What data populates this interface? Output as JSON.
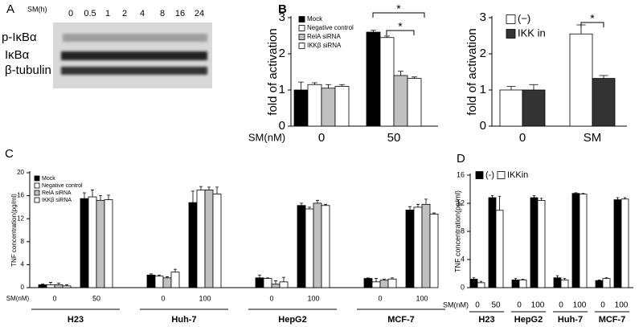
{
  "panel_labels": [
    "A",
    "B",
    "C",
    "D"
  ],
  "blot": {
    "time_label": "SM(h)",
    "timepoints": [
      "0",
      "0.5",
      "1",
      "2",
      "4",
      "8",
      "16",
      "24"
    ],
    "rows": [
      "p-IκBα",
      "IκBα",
      "β-tubulin"
    ]
  },
  "chart_data": [
    {
      "type": "bar",
      "ylabel": "fold of activation",
      "xlabel": "SM(nM)",
      "categories": [
        "0",
        "50"
      ],
      "series": [
        {
          "name": "Mock",
          "color": "#000000",
          "values": [
            1.0,
            2.6
          ],
          "errors": [
            0.22,
            0.05
          ]
        },
        {
          "name": "Negative control",
          "color": "#ffffff",
          "values": [
            1.15,
            2.45
          ],
          "errors": [
            0.05,
            0.04
          ]
        },
        {
          "name": "RelA siRNA",
          "color": "#c0c0c0",
          "values": [
            1.05,
            1.4
          ],
          "errors": [
            0.1,
            0.12
          ]
        },
        {
          "name": "IKKβ siRNA",
          "color": "#ffffff",
          "values": [
            1.1,
            1.32
          ],
          "errors": [
            0.05,
            0.04
          ]
        }
      ],
      "ylim": [
        0,
        3
      ],
      "yticks": [
        0,
        1,
        2,
        3
      ],
      "annotations": [
        "*",
        "*"
      ]
    },
    {
      "type": "bar",
      "ylabel": "fold of activation",
      "categories": [
        "0",
        "SM"
      ],
      "series": [
        {
          "name": "(−)",
          "color": "#ffffff",
          "values": [
            1.0,
            2.55
          ],
          "errors": [
            0.1,
            0.25
          ]
        },
        {
          "name": "IKK in",
          "color": "#333333",
          "values": [
            1.0,
            1.32
          ],
          "errors": [
            0.15,
            0.08
          ]
        }
      ],
      "ylim": [
        0,
        3
      ],
      "yticks": [
        0,
        1,
        2,
        3
      ],
      "annotations": [
        "*"
      ]
    },
    {
      "type": "bar",
      "ylabel": "TNF concentration(pg/ml)",
      "xlabel": "SM(nM)",
      "categories": [
        "0",
        "50",
        "0",
        "100",
        "0",
        "100",
        "0",
        "100"
      ],
      "groups": [
        "H23",
        "Huh-7",
        "HepG2",
        "MCF-7"
      ],
      "series": [
        {
          "name": "Mock",
          "color": "#000000",
          "values": [
            0.5,
            15.5,
            2.2,
            14.8,
            1.7,
            14.3,
            1.6,
            13.5
          ],
          "errors": [
            0.1,
            1.0,
            0.2,
            2.0,
            0.5,
            0.4,
            0.1,
            0.6
          ]
        },
        {
          "name": "Negative control",
          "color": "#ffffff",
          "values": [
            0.5,
            15.8,
            2.0,
            17.0,
            1.6,
            13.7,
            1.0,
            14.0
          ],
          "errors": [
            0.4,
            1.2,
            0.2,
            0.6,
            0.1,
            0.3,
            0.6,
            0.5
          ]
        },
        {
          "name": "RelA siRNA",
          "color": "#c0c0c0",
          "values": [
            0.5,
            15.2,
            1.7,
            17.0,
            0.6,
            14.7,
            1.3,
            14.5
          ],
          "errors": [
            0.3,
            0.8,
            0.2,
            0.5,
            0.6,
            0.5,
            0.2,
            0.9
          ]
        },
        {
          "name": "IKKβ siRNA",
          "color": "#ffffff",
          "values": [
            0.3,
            15.3,
            2.7,
            16.3,
            1.0,
            14.3,
            1.5,
            12.8
          ],
          "errors": [
            0.2,
            0.8,
            0.5,
            1.2,
            0.8,
            0.2,
            0.2,
            0.2
          ]
        }
      ],
      "ylim": [
        0,
        20
      ],
      "yticks": [
        0,
        4,
        8,
        12,
        16,
        20
      ]
    },
    {
      "type": "bar",
      "ylabel": "TNF concentration(pg/ml)",
      "xlabel": "SM(nM)",
      "categories": [
        "0",
        "50",
        "0",
        "100",
        "0",
        "100",
        "0",
        "100"
      ],
      "groups": [
        "H23",
        "HepG2",
        "Huh-7",
        "MCF-7"
      ],
      "series": [
        {
          "name": "(-)",
          "color": "#000000",
          "values": [
            1.2,
            12.8,
            1.1,
            12.8,
            1.4,
            13.4,
            1.0,
            12.5
          ],
          "errors": [
            0.2,
            0.3,
            0.2,
            0.3,
            0.3,
            0.1,
            0.1,
            0.3
          ]
        },
        {
          "name": "IKKin",
          "color": "#ffffff",
          "values": [
            0.7,
            11.0,
            1.1,
            12.4,
            1.1,
            13.3,
            1.3,
            12.6
          ],
          "errors": [
            0.2,
            2.0,
            0.1,
            0.3,
            0.2,
            0.1,
            0.1,
            0.2
          ]
        }
      ],
      "ylim": [
        0,
        16
      ],
      "yticks": [
        0,
        4,
        8,
        12,
        16
      ]
    }
  ]
}
